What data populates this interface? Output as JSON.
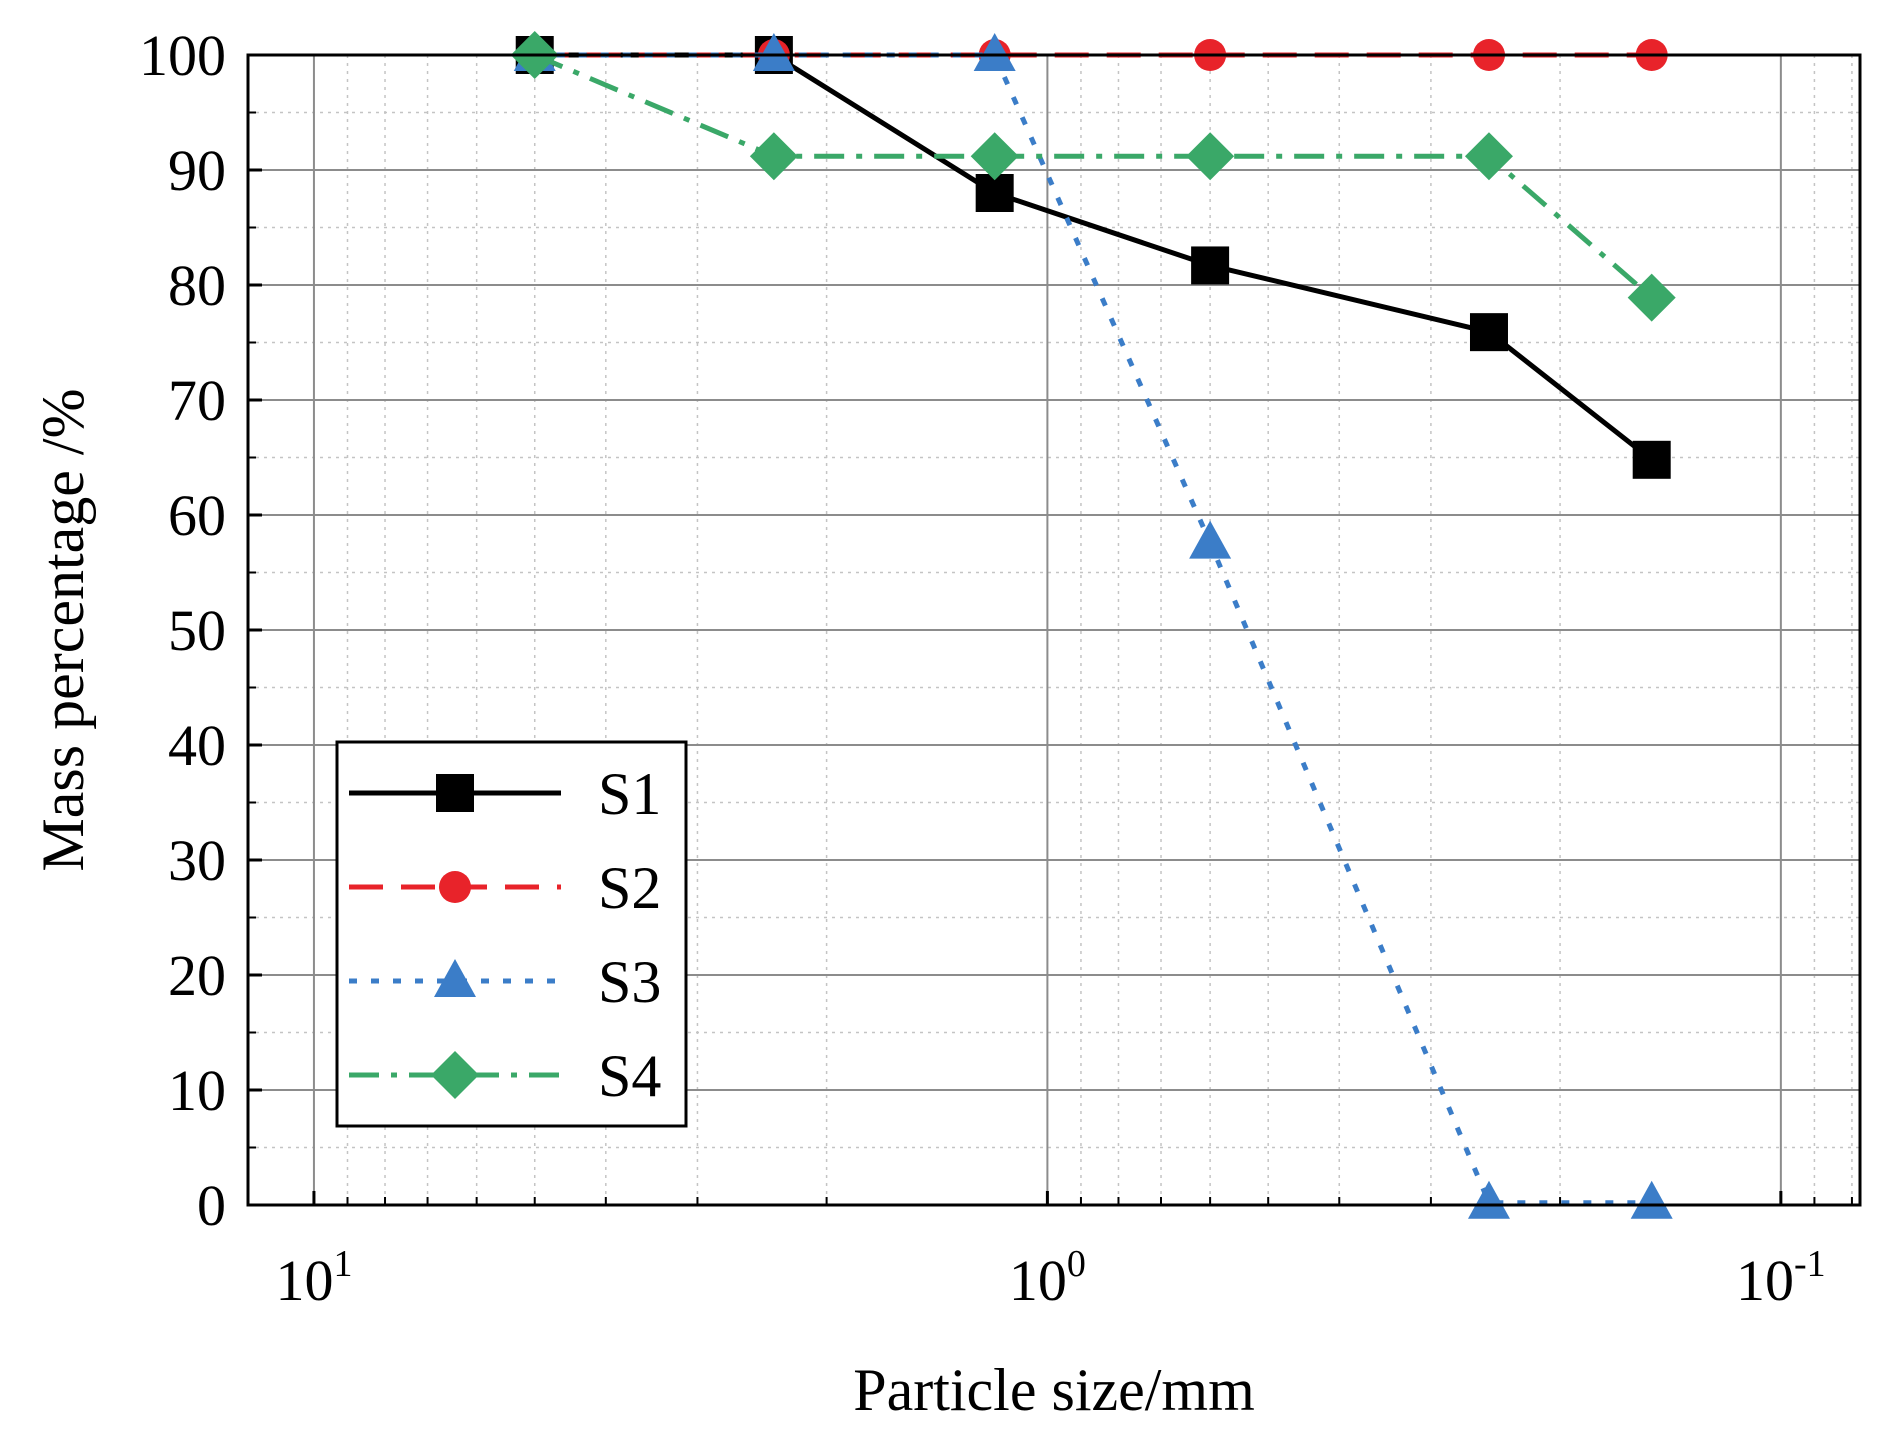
{
  "chart_data": {
    "type": "line",
    "xlabel": "Particle size/mm",
    "ylabel": "Mass percentage /%",
    "xscale": "log",
    "x_reversed": true,
    "xlim": [
      12.3,
      0.078
    ],
    "ylim": [
      0,
      100
    ],
    "y_ticks": [
      0,
      10,
      20,
      30,
      40,
      50,
      60,
      70,
      80,
      90,
      100
    ],
    "x_ticks": [
      {
        "value": 10,
        "base": "10",
        "exp": "1"
      },
      {
        "value": 1,
        "base": "10",
        "exp": "0"
      },
      {
        "value": 0.1,
        "base": "10",
        "exp": "-1"
      }
    ],
    "grid": true,
    "legend_position": "lower-left",
    "x": [
      5,
      2.36,
      1.18,
      0.6,
      0.25,
      0.15
    ],
    "series": [
      {
        "name": "S1",
        "color": "#000000",
        "dash": "solid",
        "marker": "square",
        "x": [
          5,
          2.36,
          1.18,
          0.6,
          0.25,
          0.15
        ],
        "values": [
          100,
          100,
          88,
          81.7,
          75.9,
          64.8
        ]
      },
      {
        "name": "S2",
        "color": "#e8232a",
        "dash": "dashed",
        "marker": "circle",
        "x": [
          5,
          2.36,
          1.18,
          0.6,
          0.25,
          0.15
        ],
        "values": [
          100,
          100,
          100,
          100,
          100,
          100
        ]
      },
      {
        "name": "S3",
        "color": "#3b7dc8",
        "dash": "dotted",
        "marker": "triangle",
        "x": [
          5,
          2.36,
          1.18,
          0.6,
          0.25,
          0.15
        ],
        "values": [
          100,
          100,
          100,
          57.6,
          0.2,
          0.2
        ]
      },
      {
        "name": "S4",
        "color": "#3aa868",
        "dash": "dashdot",
        "marker": "diamond",
        "x": [
          5,
          2.36,
          1.18,
          0.6,
          0.25,
          0.15
        ],
        "values": [
          100,
          91.2,
          91.2,
          91.2,
          91.2,
          78.9
        ]
      }
    ]
  }
}
